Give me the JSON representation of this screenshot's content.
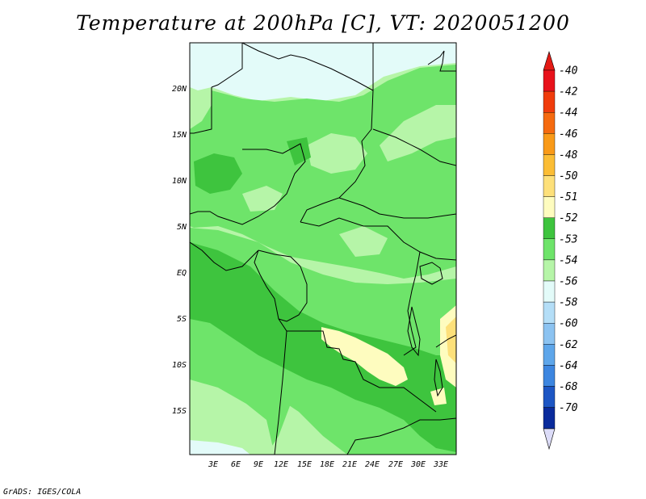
{
  "title": "Temperature at 200hPa [C], VT: 2020051200",
  "credit": "GrADS: IGES/COLA",
  "lat_labels": [
    "20N",
    "15N",
    "10N",
    "5N",
    "EQ",
    "5S",
    "10S",
    "15S"
  ],
  "lon_labels": [
    "3E",
    "6E",
    "9E",
    "12E",
    "15E",
    "18E",
    "21E",
    "24E",
    "27E",
    "30E",
    "33E"
  ],
  "colorbar": {
    "levels": [
      {
        "label": "-40",
        "color": "#e8121b"
      },
      {
        "label": "-42",
        "color": "#f03c0c"
      },
      {
        "label": "-44",
        "color": "#f56a0f"
      },
      {
        "label": "-46",
        "color": "#f99a18"
      },
      {
        "label": "-48",
        "color": "#fbbd35"
      },
      {
        "label": "-50",
        "color": "#fde07a"
      },
      {
        "label": "-51",
        "color": "#fefcbf"
      },
      {
        "label": "-52",
        "color": "#3ec43e"
      },
      {
        "label": "-53",
        "color": "#6ee46a"
      },
      {
        "label": "-54",
        "color": "#b6f5a8"
      },
      {
        "label": "-56",
        "color": "#e3fbf9"
      },
      {
        "label": "-58",
        "color": "#b4def7"
      },
      {
        "label": "-60",
        "color": "#8cc3f1"
      },
      {
        "label": "-62",
        "color": "#5ea6ea"
      },
      {
        "label": "-64",
        "color": "#3d86e0"
      },
      {
        "label": "-68",
        "color": "#1d56c4"
      },
      {
        "label": "-70",
        "color": "#0a2b9c"
      }
    ],
    "top_color": "#e41a14",
    "bottom_color": "#0b0e74",
    "bottom_triangle_color": "#dcdcf8"
  }
}
